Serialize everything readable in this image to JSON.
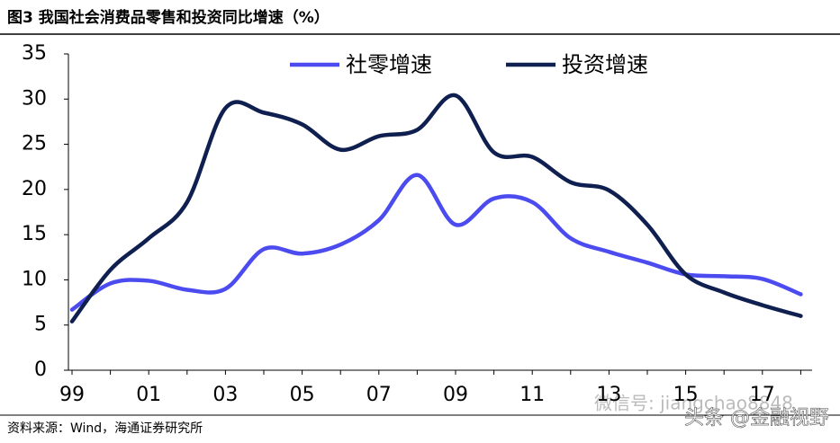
{
  "chart_data": {
    "type": "line",
    "title": "图3  我国社会消费品零售和投资同比增速（%）",
    "source": "资料来源：Wind，海通证券研究所",
    "watermarks": [
      "微信号: jiangchao8848",
      "头条 @金融视野"
    ],
    "categories": [
      "99",
      null,
      "01",
      null,
      "03",
      null,
      "05",
      null,
      "07",
      null,
      "09",
      null,
      "11",
      null,
      "13",
      null,
      "15",
      null,
      "17",
      null
    ],
    "series": [
      {
        "name": "社零增速",
        "color": "#4b4bf0",
        "values": [
          6.7,
          9.6,
          9.9,
          8.9,
          9.0,
          13.4,
          12.9,
          13.9,
          16.6,
          21.6,
          16.1,
          19.0,
          18.6,
          14.6,
          13.1,
          11.9,
          10.6,
          10.4,
          10.1,
          8.4
        ]
      },
      {
        "name": "投资增速",
        "color": "#0f1f4f",
        "values": [
          5.4,
          11.1,
          14.6,
          18.6,
          29.0,
          28.5,
          27.2,
          24.4,
          25.9,
          26.6,
          30.4,
          24.1,
          23.6,
          20.8,
          19.9,
          16.1,
          10.6,
          8.6,
          7.2,
          6.0
        ]
      }
    ],
    "ylim": [
      0,
      35
    ],
    "yticks": [
      0,
      5,
      10,
      15,
      20,
      25,
      30,
      35
    ],
    "grid": false,
    "legend": "top"
  }
}
